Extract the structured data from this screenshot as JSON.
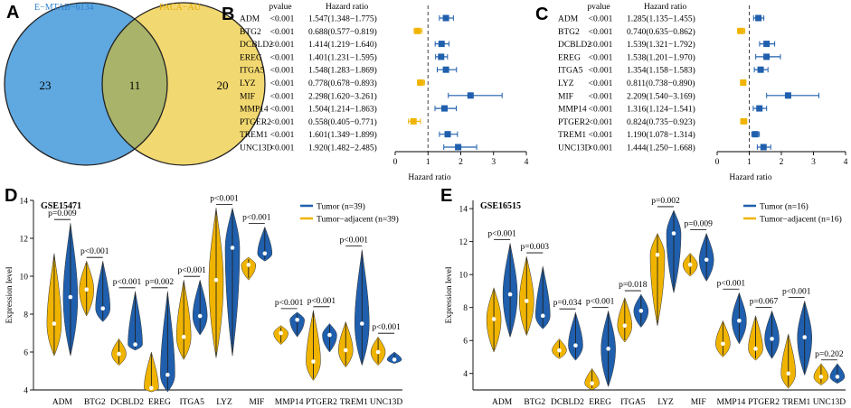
{
  "figure": {
    "panels": {
      "a": "A",
      "b": "B",
      "c": "C",
      "d": "D",
      "e": "E"
    },
    "colors": {
      "tumor": "#1f5fad",
      "adjacent": "#f0b400",
      "venn_left": "#5fa8e0",
      "venn_right": "#f2d870",
      "venn_mid": "#a9b46a"
    }
  },
  "venn": {
    "left_label": "E−MTAB−6134",
    "right_label": "PACA−AU",
    "left_only": "23",
    "overlap": "11",
    "right_only": "20"
  },
  "forest_b": {
    "col_pvalue": "pvalue",
    "col_hr": "Hazard ratio",
    "xlabel": "Hazard ratio",
    "ticks": [
      "0",
      "1",
      "2",
      "3",
      "4"
    ],
    "rows": [
      {
        "gene": "ADM",
        "p": "<0.001",
        "hr": "1.547(1.348−1.775)",
        "est": 1.547,
        "lo": 1.348,
        "hi": 1.775
      },
      {
        "gene": "BTG2",
        "p": "<0.001",
        "hr": "0.688(0.577−0.819)",
        "est": 0.688,
        "lo": 0.577,
        "hi": 0.819
      },
      {
        "gene": "DCBLD2",
        "p": "<0.001",
        "hr": "1.414(1.219−1.640)",
        "est": 1.414,
        "lo": 1.219,
        "hi": 1.64
      },
      {
        "gene": "EREG",
        "p": "<0.001",
        "hr": "1.401(1.231−1.595)",
        "est": 1.401,
        "lo": 1.231,
        "hi": 1.595
      },
      {
        "gene": "ITGA5",
        "p": "<0.001",
        "hr": "1.548(1.283−1.869)",
        "est": 1.548,
        "lo": 1.283,
        "hi": 1.869
      },
      {
        "gene": "LYZ",
        "p": "<0.001",
        "hr": "0.778(0.678−0.893)",
        "est": 0.778,
        "lo": 0.678,
        "hi": 0.893
      },
      {
        "gene": "MIF",
        "p": "<0.001",
        "hr": "2.298(1.620−3.261)",
        "est": 2.298,
        "lo": 1.62,
        "hi": 3.261
      },
      {
        "gene": "MMP14",
        "p": "<0.001",
        "hr": "1.504(1.214−1.863)",
        "est": 1.504,
        "lo": 1.214,
        "hi": 1.863
      },
      {
        "gene": "PTGER2",
        "p": "<0.001",
        "hr": "0.558(0.405−0.771)",
        "est": 0.558,
        "lo": 0.405,
        "hi": 0.771
      },
      {
        "gene": "TREM1",
        "p": "<0.001",
        "hr": "1.601(1.349−1.899)",
        "est": 1.601,
        "lo": 1.349,
        "hi": 1.899
      },
      {
        "gene": "UNC13D",
        "p": "<0.001",
        "hr": "1.920(1.482−2.485)",
        "est": 1.92,
        "lo": 1.482,
        "hi": 2.485
      }
    ]
  },
  "forest_c": {
    "col_pvalue": "pvalue",
    "col_hr": "Hazard ratio",
    "xlabel": "Hazard ratio",
    "ticks": [
      "0",
      "1",
      "2",
      "3",
      "4"
    ],
    "rows": [
      {
        "gene": "ADM",
        "p": "<0.001",
        "hr": "1.285(1.135−1.455)",
        "est": 1.285,
        "lo": 1.135,
        "hi": 1.455
      },
      {
        "gene": "BTG2",
        "p": "<0.001",
        "hr": "0.740(0.635−0.862)",
        "est": 0.74,
        "lo": 0.635,
        "hi": 0.862
      },
      {
        "gene": "DCBLD2",
        "p": "<0.001",
        "hr": "1.539(1.321−1.792)",
        "est": 1.539,
        "lo": 1.321,
        "hi": 1.792
      },
      {
        "gene": "EREG",
        "p": "<0.001",
        "hr": "1.538(1.201−1.970)",
        "est": 1.538,
        "lo": 1.201,
        "hi": 1.97
      },
      {
        "gene": "ITGA5",
        "p": "<0.001",
        "hr": "1.354(1.158−1.583)",
        "est": 1.354,
        "lo": 1.158,
        "hi": 1.583
      },
      {
        "gene": "LYZ",
        "p": "<0.001",
        "hr": "0.811(0.738−0.890)",
        "est": 0.811,
        "lo": 0.738,
        "hi": 0.89
      },
      {
        "gene": "MIF",
        "p": "<0.001",
        "hr": "2.209(1.540−3.169)",
        "est": 2.209,
        "lo": 1.54,
        "hi": 3.169
      },
      {
        "gene": "MMP14",
        "p": "<0.001",
        "hr": "1.316(1.124−1.541)",
        "est": 1.316,
        "lo": 1.124,
        "hi": 1.541
      },
      {
        "gene": "PTGER2",
        "p": "<0.001",
        "hr": "0.824(0.735−0.923)",
        "est": 0.824,
        "lo": 0.735,
        "hi": 0.923
      },
      {
        "gene": "TREM1",
        "p": "<0.001",
        "hr": "1.190(1.078−1.314)",
        "est": 1.19,
        "lo": 1.078,
        "hi": 1.314
      },
      {
        "gene": "UNC13D",
        "p": "<0.001",
        "hr": "1.444(1.250−1.668)",
        "est": 1.444,
        "lo": 1.25,
        "hi": 1.668
      }
    ]
  },
  "chart_data": [
    {
      "type": "violin",
      "title": "GSE15471",
      "ylabel": "Expression level",
      "ylim": [
        4,
        14
      ],
      "yticks": [
        "4",
        "6",
        "8",
        "10",
        "12",
        "14"
      ],
      "legend": [
        "Tumor (n=39)",
        "Tumor−adjacent (n=39)"
      ],
      "categories": [
        "ADM",
        "BTG2",
        "DCBLD2",
        "EREG",
        "ITGA5",
        "LYZ",
        "MIF",
        "MMP14",
        "PTGER2",
        "TREM1",
        "UNC13D"
      ],
      "pvalues": [
        "p=0.009",
        "p<0.001",
        "p<0.001",
        "p=0.002",
        "p<0.001",
        "p<0.001",
        "p<0.001",
        "p<0.001",
        "p<0.001",
        "p<0.001",
        "p<0.001"
      ],
      "series": [
        {
          "name": "Tumor-adjacent",
          "min": [
            5.8,
            7.9,
            5.3,
            3.9,
            5.6,
            5.7,
            9.8,
            6.4,
            4.5,
            5.2,
            5.3
          ],
          "median": [
            7.5,
            9.3,
            5.9,
            4.1,
            6.8,
            9.8,
            10.6,
            7.0,
            5.5,
            6.1,
            6.0
          ],
          "max": [
            11.2,
            10.8,
            6.7,
            6.0,
            9.8,
            13.6,
            11.0,
            7.4,
            8.2,
            7.6,
            6.8
          ]
        },
        {
          "name": "Tumor",
          "min": [
            5.8,
            7.6,
            6.1,
            3.9,
            6.9,
            5.8,
            10.8,
            6.8,
            6.0,
            5.3,
            5.4
          ],
          "median": [
            8.9,
            8.3,
            6.4,
            4.8,
            7.9,
            11.5,
            11.2,
            7.7,
            6.9,
            7.5,
            5.6
          ],
          "max": [
            12.8,
            10.8,
            9.2,
            9.2,
            9.8,
            13.6,
            12.6,
            8.1,
            7.5,
            11.4,
            6.0
          ]
        }
      ]
    },
    {
      "type": "violin",
      "title": "GSE16515",
      "ylabel": "Expression level",
      "ylim": [
        3,
        14.5
      ],
      "yticks": [
        "4",
        "6",
        "8",
        "10",
        "12",
        "14"
      ],
      "legend": [
        "Tumor (n=16)",
        "Tumor−adjacent (n=16)"
      ],
      "categories": [
        "ADM",
        "BTG2",
        "DCBLD2",
        "EREG",
        "ITGA5",
        "LYZ",
        "MIF",
        "MMP14",
        "PTGER2",
        "TREM1",
        "UNC13D"
      ],
      "pvalues": [
        "p<0.001",
        "p=0.003",
        "p=0.034",
        "p<0.001",
        "p=0.018",
        "p=0.002",
        "p=0.009",
        "p<0.001",
        "p=0.067",
        "p<0.001",
        "p=0.202"
      ],
      "series": [
        {
          "name": "Tumor-adjacent",
          "min": [
            5.3,
            6.3,
            4.9,
            3.0,
            5.9,
            6.9,
            9.9,
            5.0,
            4.8,
            3.1,
            3.3
          ],
          "median": [
            7.3,
            8.4,
            5.4,
            3.4,
            6.9,
            11.2,
            10.6,
            5.8,
            5.5,
            4.0,
            3.8
          ],
          "max": [
            9.2,
            11.1,
            6.1,
            4.3,
            8.6,
            12.5,
            11.3,
            7.2,
            7.5,
            6.4,
            4.6
          ]
        },
        {
          "name": "Tumor",
          "min": [
            6.2,
            6.7,
            4.8,
            3.2,
            6.8,
            8.9,
            9.6,
            5.8,
            4.9,
            3.9,
            3.4
          ],
          "median": [
            8.8,
            7.5,
            5.7,
            5.5,
            7.8,
            12.5,
            10.9,
            7.2,
            6.1,
            6.2,
            3.8
          ],
          "max": [
            11.9,
            10.5,
            7.7,
            7.8,
            8.8,
            13.9,
            12.5,
            8.9,
            7.8,
            8.4,
            4.6
          ]
        }
      ]
    }
  ]
}
